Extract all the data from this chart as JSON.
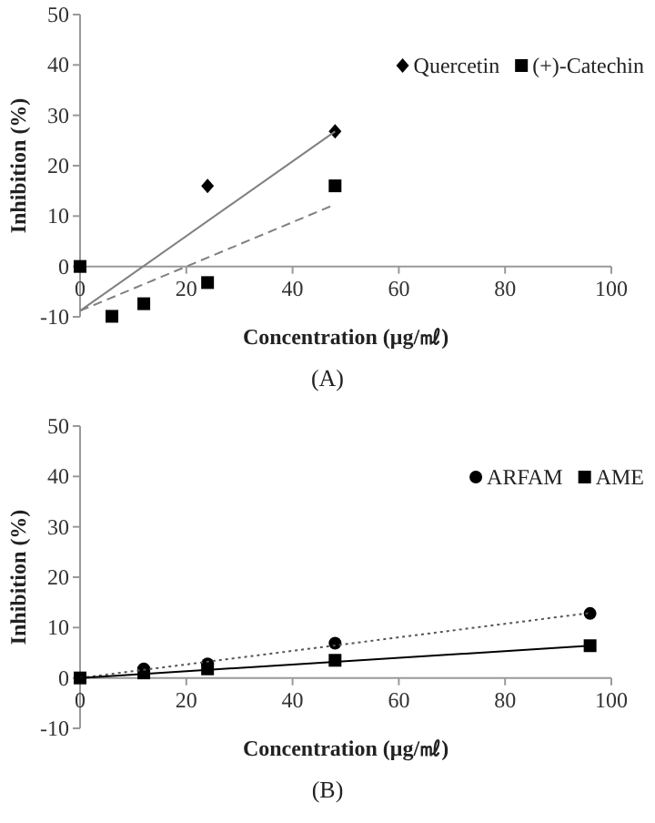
{
  "chart_data": [
    {
      "type": "scatter",
      "xlabel": "Concentration (μg/㎖)",
      "ylabel": "Inhibition (%)",
      "xlim": [
        0,
        100
      ],
      "xticks": [
        0,
        20,
        40,
        60,
        80,
        100
      ],
      "ylim": [
        -10,
        50
      ],
      "yticks": [
        -10,
        0,
        10,
        20,
        30,
        40,
        50
      ],
      "legend": "top right",
      "annotations": [
        "(A)"
      ],
      "series": [
        {
          "name": "Quercetin",
          "color": "#000000",
          "marker": "diamond",
          "x": [
            24,
            48
          ],
          "values": [
            16,
            26.8
          ]
        },
        {
          "name": "(+)-Catechin",
          "color": "#000000",
          "marker": "square",
          "x": [
            0,
            6,
            12,
            24,
            48
          ],
          "values": [
            0,
            -9.9,
            -7.4,
            -3.2,
            16
          ]
        },
        {
          "type": "line",
          "color": "#808080",
          "line_style": "solid",
          "x": [
            0,
            48
          ],
          "values": [
            -8.8,
            26.8
          ]
        },
        {
          "type": "line",
          "color": "#808080",
          "line_style": "dashed",
          "x": [
            0,
            48
          ],
          "values": [
            -8.8,
            12.3
          ]
        }
      ]
    },
    {
      "type": "scatter",
      "xlabel": "Concentration (μg/㎖)",
      "ylabel": "Inhibition (%)",
      "xlim": [
        0,
        100
      ],
      "xticks": [
        0,
        20,
        40,
        60,
        80,
        100
      ],
      "ylim": [
        -10,
        50
      ],
      "yticks": [
        -10,
        0,
        10,
        20,
        30,
        40,
        50
      ],
      "legend": "top right",
      "annotations": [
        "(B)"
      ],
      "series": [
        {
          "name": "ARFAM",
          "color": "#000000",
          "marker": "circle",
          "x": [
            12,
            24,
            48,
            96
          ],
          "values": [
            1.8,
            2.8,
            6.9,
            12.8
          ]
        },
        {
          "name": "AME",
          "color": "#000000",
          "marker": "square",
          "x": [
            0,
            12,
            24,
            48,
            96
          ],
          "values": [
            0,
            1,
            1.8,
            3.5,
            6.4
          ]
        },
        {
          "type": "line",
          "color": "#555555",
          "line_style": "dotted",
          "x": [
            0,
            96
          ],
          "values": [
            0,
            12.9
          ]
        },
        {
          "type": "line",
          "color": "#000000",
          "line_style": "solid",
          "x": [
            0,
            96
          ],
          "values": [
            0,
            6.4
          ]
        }
      ]
    }
  ]
}
